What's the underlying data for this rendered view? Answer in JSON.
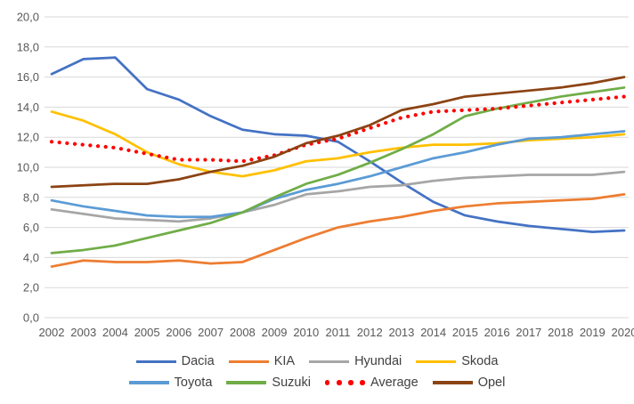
{
  "chart_data": {
    "type": "line",
    "title": "",
    "xlabel": "",
    "ylabel": "",
    "x": [
      2002,
      2003,
      2004,
      2005,
      2006,
      2007,
      2008,
      2009,
      2010,
      2011,
      2012,
      2013,
      2014,
      2015,
      2016,
      2017,
      2018,
      2019,
      2020
    ],
    "x_tick_labels": [
      "2002",
      "2003",
      "2004",
      "2005",
      "2006",
      "2007",
      "2008",
      "2009",
      "2010",
      "2011",
      "2012",
      "2013",
      "2014",
      "2015",
      "2016",
      "2017",
      "2018",
      "2019",
      "2020"
    ],
    "ylim": [
      0,
      20
    ],
    "ytick_step": 2,
    "y_tick_labels": [
      "0,0",
      "2,0",
      "4,0",
      "6,0",
      "8,0",
      "10,0",
      "12,0",
      "14,0",
      "16,0",
      "18,0",
      "20,0"
    ],
    "grid": "horizontal",
    "legend_position": "bottom",
    "legend_rows": [
      [
        "Dacia",
        "KIA",
        "Hyundai",
        "Skoda"
      ],
      [
        "Toyota",
        "Suzuki",
        "Average",
        "Opel"
      ]
    ],
    "series": [
      {
        "name": "Dacia",
        "color": "#4472C4",
        "line_style": "solid",
        "values": [
          16.2,
          17.2,
          17.3,
          15.2,
          14.5,
          13.4,
          12.5,
          12.2,
          12.1,
          11.7,
          10.4,
          9.0,
          7.7,
          6.8,
          6.4,
          6.1,
          5.9,
          5.7,
          5.8
        ]
      },
      {
        "name": "KIA",
        "color": "#ED7D31",
        "line_style": "solid",
        "values": [
          3.4,
          3.8,
          3.7,
          3.7,
          3.8,
          3.6,
          3.7,
          4.5,
          5.3,
          6.0,
          6.4,
          6.7,
          7.1,
          7.4,
          7.6,
          7.7,
          7.8,
          7.9,
          8.2
        ]
      },
      {
        "name": "Hyundai",
        "color": "#A6A6A6",
        "line_style": "solid",
        "values": [
          7.2,
          6.9,
          6.6,
          6.5,
          6.4,
          6.6,
          7.0,
          7.5,
          8.2,
          8.4,
          8.7,
          8.8,
          9.1,
          9.3,
          9.4,
          9.5,
          9.5,
          9.5,
          9.7
        ]
      },
      {
        "name": "Skoda",
        "color": "#FFC000",
        "line_style": "solid",
        "values": [
          13.7,
          13.1,
          12.2,
          11.0,
          10.2,
          9.7,
          9.4,
          9.8,
          10.4,
          10.6,
          11.0,
          11.3,
          11.5,
          11.5,
          11.6,
          11.8,
          11.9,
          12.0,
          12.2
        ]
      },
      {
        "name": "Toyota",
        "color": "#5B9BD5",
        "line_style": "solid",
        "values": [
          7.8,
          7.4,
          7.1,
          6.8,
          6.7,
          6.7,
          7.0,
          7.9,
          8.5,
          8.9,
          9.4,
          10.0,
          10.6,
          11.0,
          11.5,
          11.9,
          12.0,
          12.2,
          12.4
        ]
      },
      {
        "name": "Suzuki",
        "color": "#70AD47",
        "line_style": "solid",
        "values": [
          4.3,
          4.5,
          4.8,
          5.3,
          5.8,
          6.3,
          7.0,
          8.0,
          8.9,
          9.5,
          10.3,
          11.2,
          12.2,
          13.4,
          13.9,
          14.3,
          14.7,
          15.0,
          15.3
        ]
      },
      {
        "name": "Average",
        "color": "#FF0000",
        "line_style": "dotted",
        "values": [
          11.7,
          11.5,
          11.3,
          10.9,
          10.5,
          10.5,
          10.4,
          10.8,
          11.5,
          11.9,
          12.6,
          13.3,
          13.7,
          13.8,
          13.9,
          14.1,
          14.3,
          14.5,
          14.7
        ]
      },
      {
        "name": "Opel",
        "color": "#8C4313",
        "line_style": "solid",
        "values": [
          8.7,
          8.8,
          8.9,
          8.9,
          9.2,
          9.7,
          10.1,
          10.7,
          11.6,
          12.1,
          12.8,
          13.8,
          14.2,
          14.7,
          14.9,
          15.1,
          15.3,
          15.6,
          16.0
        ]
      }
    ]
  },
  "style": {
    "background": "#FFFFFF",
    "grid_color": "#D9D9D9",
    "axis_text_color": "#595959",
    "legend_text_color": "#404040"
  }
}
